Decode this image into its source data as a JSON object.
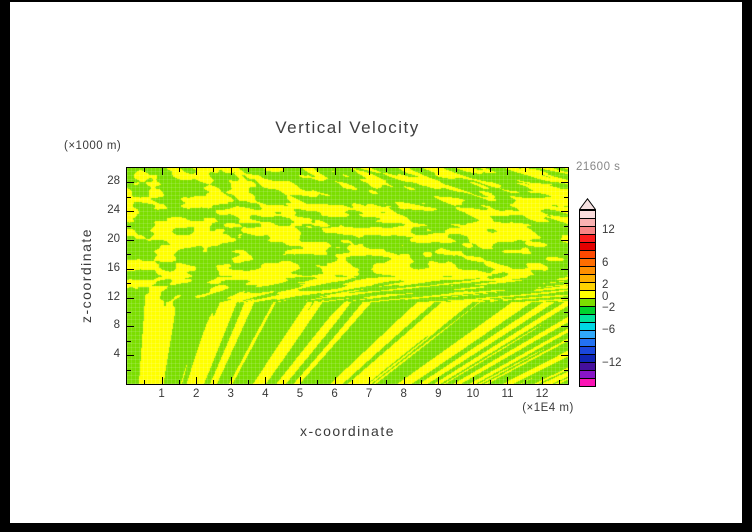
{
  "frame": {
    "background": "#000000",
    "page_background": "#ffffff"
  },
  "chart_data": {
    "type": "heatmap",
    "title": "Vertical Velocity",
    "time_annotation": "21600 s",
    "x_axis": {
      "label": "x-coordinate",
      "units_label": "(×1E4 m)",
      "min": 0,
      "max": 12.75,
      "major_ticks": [
        1,
        2,
        3,
        4,
        5,
        6,
        7,
        8,
        9,
        10,
        11,
        12
      ],
      "minor_ticks": [
        0.5,
        1.5,
        2.5,
        3.5,
        4.5,
        5.5,
        6.5,
        7.5,
        8.5,
        9.5,
        10.5,
        11.5,
        12.5
      ]
    },
    "y_axis": {
      "label": "z-coordinate",
      "units_label": "(×1000 m)",
      "min": 0,
      "max": 30,
      "major_ticks": [
        4,
        8,
        12,
        16,
        20,
        24,
        28
      ],
      "minor_ticks": [
        2,
        6,
        10,
        14,
        18,
        22,
        26
      ]
    },
    "colorbar": {
      "value_min": -16,
      "value_max": 16,
      "tick_labels": [
        12,
        6,
        2,
        0,
        -2,
        -6,
        -12
      ],
      "arrow_fill": "#f6e2e2",
      "outline": "#000000",
      "band_colors_top_to_bottom": [
        "#fbdcdc",
        "#f9b1b1",
        "#f78484",
        "#fb1b1b",
        "#e30000",
        "#fe4900",
        "#fe6d00",
        "#fe8f00",
        "#feb100",
        "#fed300",
        "#ffff00",
        "#7cde00",
        "#00d22d",
        "#00e39b",
        "#00d7e3",
        "#31a9fa",
        "#2372f2",
        "#1a47dc",
        "#0f25b5",
        "#45109d",
        "#8815c7",
        "#fa14b5"
      ]
    },
    "field": {
      "description": "Turbulent vertical-velocity field; values stay within the two bands around zero, so only the positive (yellow) and negative (green) contour fills are visible. Streaks are vertical near the bottom boundary and horizontal in the mid/upper levels.",
      "value_range_visible": [
        -2,
        2
      ],
      "palette": {
        "positive": "#ffff00",
        "negative": "#7cde00"
      },
      "noise": {
        "seed": 12345,
        "anisotropy_anchors": [
          [
            0,
            12,
            9
          ],
          [
            0.28,
            18,
            7
          ],
          [
            0.5,
            20,
            7
          ],
          [
            0.62,
            10,
            12
          ],
          [
            1,
            7,
            20
          ]
        ],
        "octave2_weight": 0.3,
        "threshold_top": 0.545,
        "threshold_slope": -0.09
      }
    },
    "styles": {
      "text_color": "#3a3a3a",
      "muted_text_color": "#878787",
      "axis_color": "#000000"
    }
  }
}
